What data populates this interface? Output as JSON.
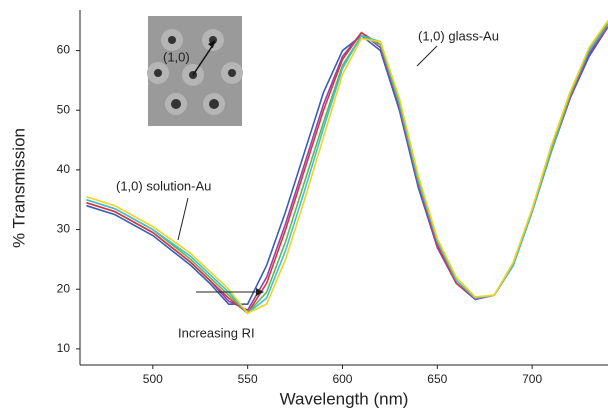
{
  "chart_data": {
    "type": "line",
    "x_label": "Wavelength (nm)",
    "y_label": "% Transmission",
    "x": [
      465,
      480,
      500,
      520,
      530,
      540,
      550,
      560,
      570,
      580,
      590,
      600,
      610,
      620,
      630,
      640,
      650,
      660,
      670,
      680,
      690,
      700,
      710,
      720,
      730,
      740
    ],
    "series": [
      {
        "color": "#3a5fb0",
        "values": [
          34,
          32.5,
          29,
          24,
          21,
          17.5,
          17.5,
          24,
          33,
          43,
          53,
          60,
          62.5,
          60,
          50,
          37,
          27,
          21,
          18.3,
          19,
          24,
          33,
          43,
          52,
          59,
          64
        ]
      },
      {
        "color": "#9b3fb0",
        "values": [
          34.5,
          33,
          29.5,
          24.5,
          21.5,
          18,
          16.5,
          22,
          31,
          41,
          51,
          59,
          63,
          60.5,
          50.5,
          37.5,
          27,
          21,
          18.3,
          19,
          24,
          33,
          43,
          52,
          59.5,
          64
        ]
      },
      {
        "color": "#d23a3a",
        "values": [
          34.5,
          33,
          29.5,
          24.5,
          21.5,
          18.5,
          16,
          21,
          30,
          40,
          50,
          58.5,
          63,
          61,
          51,
          38,
          27.5,
          21,
          18.5,
          19,
          24,
          33,
          43,
          52.5,
          60,
          64.5
        ]
      },
      {
        "color": "#5cb85c",
        "values": [
          35,
          33.5,
          30,
          25,
          22,
          19,
          16,
          19.5,
          28,
          38,
          48,
          57.5,
          62.5,
          61,
          51,
          38,
          28,
          21.5,
          18.5,
          19,
          24,
          33,
          43,
          52.5,
          60,
          64.5
        ]
      },
      {
        "color": "#40c0d0",
        "values": [
          35,
          33.5,
          30,
          25.5,
          22.5,
          19.5,
          16,
          18.5,
          26.5,
          36.5,
          47,
          57,
          62.5,
          61.5,
          51.5,
          38.5,
          28,
          21.5,
          18.5,
          19,
          24,
          33,
          43.5,
          53,
          60,
          65
        ]
      },
      {
        "color": "#f2d21c",
        "values": [
          35.5,
          34,
          30.5,
          26,
          23,
          20,
          16,
          17.5,
          25,
          35,
          45.5,
          56,
          62,
          61.5,
          52,
          39,
          28.5,
          22,
          18.7,
          19,
          24.5,
          33.5,
          44,
          53,
          60.5,
          65
        ]
      }
    ],
    "xlim": [
      461.6,
      740
    ],
    "xticks": [
      500,
      550,
      600,
      650,
      700
    ],
    "ylim": [
      7.3,
      66.8
    ],
    "yticks": [
      10,
      20,
      30,
      40,
      50,
      60
    ],
    "annotations": {
      "glass": "(1,0) glass-Au",
      "solution": "(1,0) solution-Au",
      "shift": "Increasing RI",
      "inset": "(1,0)"
    }
  }
}
